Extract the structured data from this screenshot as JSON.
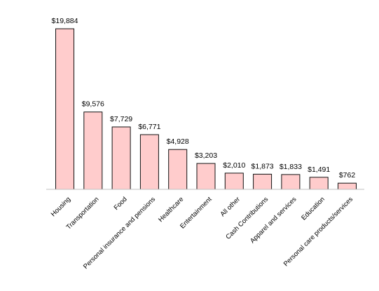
{
  "chart_data": {
    "type": "bar",
    "categories": [
      "Housing",
      "Transportation",
      "Food",
      "Personal insurance and pensions",
      "Healthcare",
      "Entertainment",
      "All other",
      "Cash Contributions",
      "Apparel and services",
      "Education",
      "Personal care products/services"
    ],
    "values": [
      19884,
      9576,
      7729,
      6771,
      4928,
      3203,
      2010,
      1873,
      1833,
      1491,
      762
    ],
    "value_labels": [
      "$19,884",
      "$9,576",
      "$7,729",
      "$6,771",
      "$4,928",
      "$3,203",
      "$2,010",
      "$1,873",
      "$1,833",
      "$1,491",
      "$762"
    ],
    "title": "",
    "xlabel": "",
    "ylabel": "",
    "ylim": [
      0,
      19884
    ],
    "grid": false,
    "legend": "none",
    "bar_color": "#ffcccc",
    "bar_edge_color": "#000000"
  }
}
